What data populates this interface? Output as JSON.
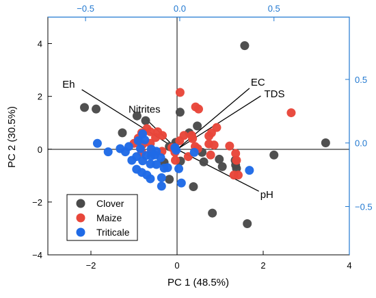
{
  "chart_data": {
    "type": "scatter",
    "title": "",
    "xlabel": "PC 1 (48.5%)",
    "ylabel": "PC 2 (30.5%)",
    "xlim": [
      -3,
      4
    ],
    "ylim": [
      -4,
      5
    ],
    "xticks": [
      -2,
      0,
      2,
      4
    ],
    "yticks": [
      -4,
      -2,
      0,
      2,
      4
    ],
    "top_axis": {
      "lim": [
        -0.7,
        0.9
      ],
      "ticks": [
        -0.5,
        0.0,
        0.5
      ],
      "tick_labels": [
        "-0.5",
        "0.0",
        "0.5"
      ],
      "color": "#1f77d0"
    },
    "right_axis": {
      "lim": [
        -0.88,
        0.99
      ],
      "ticks": [
        -0.5,
        0.0,
        0.5
      ],
      "tick_labels": [
        "-0.5",
        "0.0",
        "0.5"
      ],
      "color": "#1f77d0"
    },
    "legend_position": "bottom-left",
    "series": [
      {
        "name": "Clover",
        "color": "#4a4a4a",
        "points": [
          [
            -2.15,
            1.58
          ],
          [
            -1.88,
            1.52
          ],
          [
            -1.27,
            0.62
          ],
          [
            -0.93,
            1.26
          ],
          [
            -0.73,
            1.08
          ],
          [
            0.07,
            1.4
          ],
          [
            0.28,
            0.62
          ],
          [
            0.47,
            0.88
          ],
          [
            -0.18,
            0.1
          ],
          [
            -0.03,
            0.26
          ],
          [
            0.58,
            -0.12
          ],
          [
            0.98,
            -0.38
          ],
          [
            1.05,
            -0.66
          ],
          [
            1.35,
            -0.42
          ],
          [
            1.36,
            -0.6
          ],
          [
            1.38,
            -0.73
          ],
          [
            1.57,
            3.92
          ],
          [
            1.63,
            -2.82
          ],
          [
            2.25,
            -0.22
          ],
          [
            3.45,
            0.24
          ],
          [
            0.38,
            -1.42
          ],
          [
            0.62,
            -0.48
          ],
          [
            0.82,
            -2.42
          ],
          [
            -0.18,
            -1.14
          ],
          [
            -0.3,
            -0.5
          ],
          [
            0.08,
            -0.45
          ]
        ]
      },
      {
        "name": "Maize",
        "color": "#e8463a",
        "points": [
          [
            0.07,
            2.15
          ],
          [
            0.43,
            1.6
          ],
          [
            0.5,
            1.52
          ],
          [
            -0.7,
            0.78
          ],
          [
            -0.82,
            0.62
          ],
          [
            -0.62,
            0.66
          ],
          [
            -0.45,
            0.66
          ],
          [
            -0.34,
            0.52
          ],
          [
            -0.5,
            0.44
          ],
          [
            -0.9,
            0.42
          ],
          [
            -0.62,
            0.22
          ],
          [
            -0.8,
            0.18
          ],
          [
            -1.0,
            0.22
          ],
          [
            -0.82,
            -0.12
          ],
          [
            -0.6,
            -0.1
          ],
          [
            -0.35,
            -0.08
          ],
          [
            -0.12,
            0.06
          ],
          [
            0.06,
            0.32
          ],
          [
            0.16,
            0.52
          ],
          [
            0.34,
            0.52
          ],
          [
            0.36,
            0.4
          ],
          [
            0.42,
            0.1
          ],
          [
            0.48,
            0.02
          ],
          [
            0.74,
            0.5
          ],
          [
            0.8,
            0.62
          ],
          [
            0.92,
            0.82
          ],
          [
            0.86,
            0.16
          ],
          [
            1.22,
            0.12
          ],
          [
            1.36,
            -0.16
          ],
          [
            1.38,
            -0.42
          ],
          [
            0.78,
            -0.22
          ],
          [
            0.26,
            -0.28
          ],
          [
            -0.05,
            -0.12
          ],
          [
            -0.04,
            -0.42
          ],
          [
            1.32,
            -0.98
          ],
          [
            1.42,
            -0.98
          ],
          [
            2.65,
            1.38
          ],
          [
            0.74,
            0.2
          ]
        ]
      },
      {
        "name": "Triticale",
        "color": "#1f6ae6",
        "points": [
          [
            -1.85,
            0.22
          ],
          [
            -1.6,
            -0.1
          ],
          [
            -1.32,
            0.02
          ],
          [
            -1.2,
            -0.1
          ],
          [
            -1.12,
            0.1
          ],
          [
            -0.9,
            0.32
          ],
          [
            -0.8,
            0.58
          ],
          [
            -0.75,
            0.35
          ],
          [
            -0.85,
            0.02
          ],
          [
            -0.94,
            -0.28
          ],
          [
            -0.72,
            -0.24
          ],
          [
            -0.6,
            -0.26
          ],
          [
            -0.48,
            -0.08
          ],
          [
            -0.38,
            -0.32
          ],
          [
            -0.3,
            -0.72
          ],
          [
            -0.22,
            -0.7
          ],
          [
            -0.36,
            -1.08
          ],
          [
            -0.48,
            -0.58
          ],
          [
            -0.62,
            -0.56
          ],
          [
            -0.8,
            -0.44
          ],
          [
            -0.94,
            -0.76
          ],
          [
            -0.82,
            -0.88
          ],
          [
            -0.7,
            -0.98
          ],
          [
            -0.62,
            -1.12
          ],
          [
            -0.36,
            -1.4
          ],
          [
            -0.6,
            0.0
          ],
          [
            0.04,
            -0.74
          ],
          [
            0.1,
            -1.28
          ],
          [
            0.4,
            -0.12
          ],
          [
            -0.02,
            -0.04
          ],
          [
            -0.05,
            0.06
          ],
          [
            -1.05,
            -0.42
          ],
          [
            1.68,
            -0.8
          ],
          [
            -0.52,
            -0.22
          ]
        ]
      }
    ],
    "loadings": [
      {
        "label": "Eh",
        "pc1": -0.52,
        "pc2": 0.42
      },
      {
        "label": "Nitrites",
        "pc1": -0.18,
        "pc2": 0.19
      },
      {
        "label": "EC",
        "pc1": 0.37,
        "pc2": 0.43
      },
      {
        "label": "TDS",
        "pc1": 0.43,
        "pc2": 0.37
      },
      {
        "label": "pH",
        "pc1": 0.42,
        "pc2": -0.38
      }
    ]
  }
}
